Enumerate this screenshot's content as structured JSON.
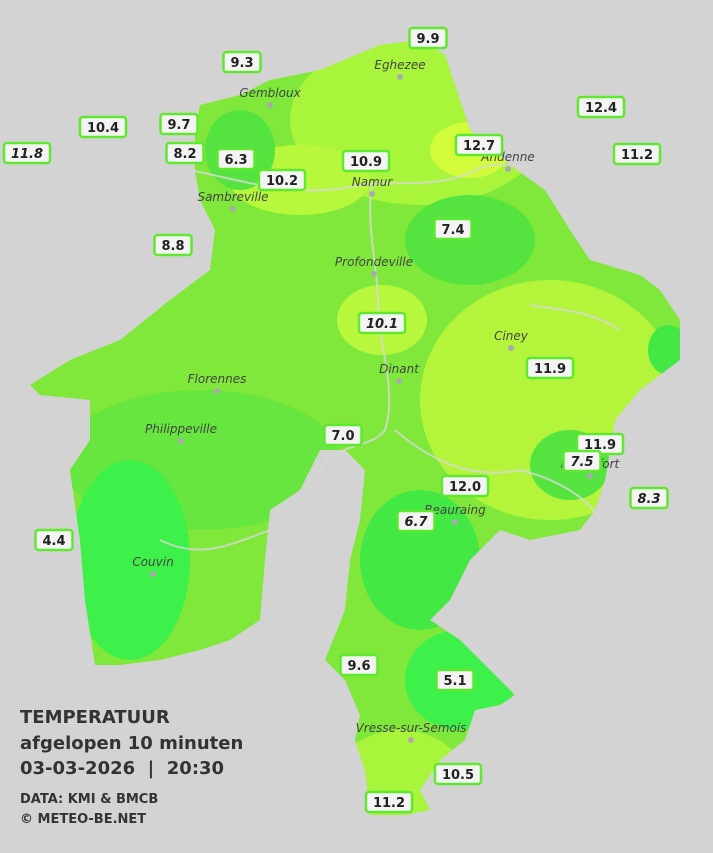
{
  "title": "TEMPERATUUR",
  "subtitle": "afgelopen 10 minuten",
  "datetime": "03-03-2026  |  20:30",
  "credits": [
    "DATA: KMI & BMCB",
    "© METEO-BE.NET"
  ],
  "towns": [
    "Eghezee",
    "Gembloux",
    "Andenne",
    "Namur",
    "Sambreville",
    "Profondeville",
    "Ciney",
    "Florennes",
    "Dinant",
    "Philippeville",
    "Beauraing",
    "Rochefort",
    "Couvin",
    "Vresse-sur-Semois"
  ],
  "stations": [
    "9.9",
    "9.3",
    "12.4",
    "10.4",
    "9.7",
    "11.8",
    "8.2",
    "6.3",
    "12.7",
    "11.2",
    "10.9",
    "10.2",
    "7.4",
    "8.8",
    "10.1",
    "11.9",
    "7.0",
    "11.9",
    "7.5",
    "12.0",
    "8.3",
    "6.7",
    "4.4",
    "9.6",
    "5.1",
    "10.5",
    "11.2"
  ]
}
